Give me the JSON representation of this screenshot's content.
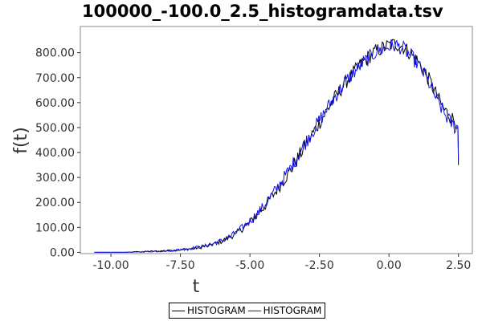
{
  "chart_data": {
    "type": "line",
    "title": "100000_-100.0_2.5_histogramdata.tsv",
    "xlabel": "t",
    "ylabel": "f(t)",
    "xlim": [
      -11.1,
      3.0
    ],
    "ylim": [
      -5,
      905
    ],
    "x_ticks": [
      -10.0,
      -7.5,
      -5.0,
      -2.5,
      0.0,
      2.5
    ],
    "x_tick_labels": [
      "-10.00",
      "-7.50",
      "-5.00",
      "-2.50",
      "0.00",
      "2.50"
    ],
    "y_ticks": [
      0,
      100,
      200,
      300,
      400,
      500,
      600,
      700,
      800
    ],
    "y_tick_labels": [
      "0.00",
      "100.00",
      "200.00",
      "300.00",
      "400.00",
      "500.00",
      "600.00",
      "700.00",
      "800.00"
    ],
    "grid": false,
    "legend_position": "bottom-center",
    "series": [
      {
        "name": "HISTOGRAM",
        "color": "#000000",
        "x": [
          -11.0,
          -10.0,
          -9.5,
          -9.0,
          -8.5,
          -8.0,
          -7.5,
          -7.0,
          -6.5,
          -6.0,
          -5.5,
          -5.0,
          -4.5,
          -4.0,
          -3.5,
          -3.0,
          -2.5,
          -2.0,
          -1.5,
          -1.0,
          -0.5,
          0.0,
          0.25,
          0.5,
          0.75,
          1.0,
          1.25,
          1.5,
          1.75,
          2.0,
          2.25,
          2.4,
          2.45,
          2.48,
          2.5
        ],
        "y": [
          0,
          0,
          0,
          2,
          4,
          6,
          10,
          16,
          26,
          45,
          75,
          120,
          180,
          255,
          335,
          430,
          520,
          610,
          690,
          755,
          805,
          830,
          835,
          825,
          800,
          770,
          730,
          680,
          620,
          570,
          540,
          525,
          520,
          500,
          350
        ]
      },
      {
        "name": "HISTOGRAM",
        "color": "#1010ee",
        "x": [
          -11.0,
          -10.0,
          -9.5,
          -9.0,
          -8.5,
          -8.0,
          -7.5,
          -7.0,
          -6.5,
          -6.0,
          -5.5,
          -5.0,
          -4.5,
          -4.0,
          -3.5,
          -3.0,
          -2.5,
          -2.0,
          -1.5,
          -1.0,
          -0.5,
          0.0,
          0.25,
          0.5,
          0.75,
          1.0,
          1.25,
          1.5,
          1.75,
          2.0,
          2.25,
          2.4,
          2.45,
          2.48,
          2.5
        ],
        "y": [
          0,
          0,
          0,
          2,
          4,
          6,
          11,
          18,
          28,
          47,
          78,
          125,
          185,
          262,
          345,
          440,
          528,
          615,
          692,
          752,
          800,
          825,
          830,
          818,
          792,
          760,
          718,
          665,
          605,
          555,
          515,
          500,
          505,
          505,
          370
        ]
      }
    ]
  }
}
